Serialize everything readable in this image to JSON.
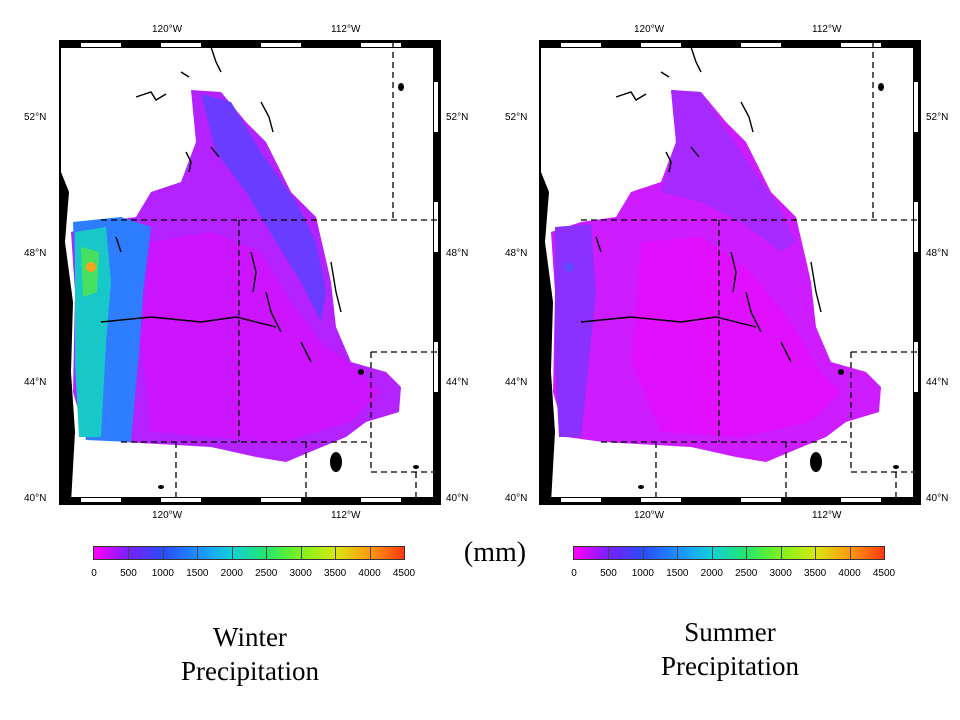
{
  "maps": [
    {
      "id": "winter",
      "title_line1": "Winter",
      "title_line2": "Precipitation",
      "top_lon_labels": [
        "120°W",
        "112°W"
      ],
      "bottom_lon_labels": [
        "120°W",
        "112°W"
      ],
      "lat_labels": [
        "52°N",
        "48°N",
        "44°N",
        "40°N"
      ]
    },
    {
      "id": "summer",
      "title_line1": "Summer",
      "title_line2": "Precipitation",
      "top_lon_labels": [
        "120°W",
        "112°W"
      ],
      "bottom_lon_labels": [
        "120°W",
        "112°W"
      ],
      "lat_labels": [
        "52°N",
        "48°N",
        "44°N",
        "40°N"
      ]
    }
  ],
  "unit_label": "(mm)",
  "colorbar": {
    "ticks": [
      "0",
      "500",
      "1000",
      "1500",
      "2000",
      "2500",
      "3000",
      "3500",
      "4000",
      "4500"
    ],
    "colors": [
      "#ff00ff",
      "#7a1fff",
      "#2a4bff",
      "#1c8fff",
      "#11d0d6",
      "#22e86c",
      "#7ef21e",
      "#d6e812",
      "#ff9a10",
      "#ff3a10"
    ]
  },
  "palette": {
    "low": "#d020ff",
    "mid_low": "#7a2cff",
    "mid": "#3f5cff",
    "high": "#18c8d8",
    "very_high": "#3cd866",
    "peak": "#ffa020",
    "land_outline": "#000000"
  }
}
